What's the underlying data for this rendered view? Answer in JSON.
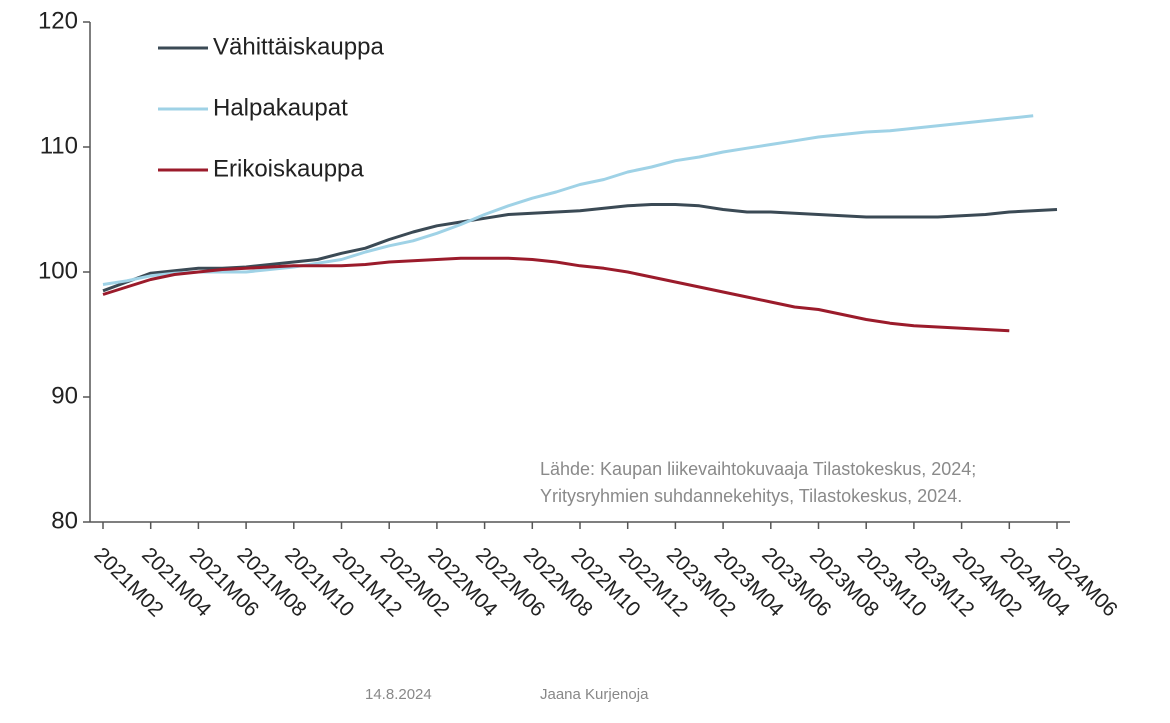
{
  "chart_data": {
    "type": "line",
    "categories": [
      "2021M02",
      null,
      "2021M04",
      null,
      "2021M06",
      null,
      "2021M08",
      null,
      "2021M10",
      null,
      "2021M12",
      null,
      "2022M02",
      null,
      "2022M04",
      null,
      "2022M06",
      null,
      "2022M08",
      null,
      "2022M10",
      null,
      "2022M12",
      null,
      "2023M02",
      null,
      "2023M04",
      null,
      "2023M06",
      null,
      "2023M08",
      null,
      "2023M10",
      null,
      "2023M12",
      null,
      "2024M02",
      null,
      "2024M04",
      null,
      "2024M06"
    ],
    "series": [
      {
        "name": "Vähittäiskauppa",
        "color": "#3b4a55",
        "values": [
          98.5,
          99.2,
          99.9,
          100.1,
          100.3,
          100.3,
          100.4,
          100.6,
          100.8,
          101.0,
          101.5,
          101.9,
          102.6,
          103.2,
          103.7,
          104.0,
          104.3,
          104.6,
          104.7,
          104.8,
          104.9,
          105.1,
          105.3,
          105.4,
          105.4,
          105.3,
          105.0,
          104.8,
          104.8,
          104.7,
          104.6,
          104.5,
          104.4,
          104.4,
          104.4,
          104.4,
          104.5,
          104.6,
          104.8,
          104.9,
          105.0
        ]
      },
      {
        "name": "Halpakaupat",
        "color": "#9fd2e6",
        "values": [
          99.0,
          99.3,
          99.7,
          99.9,
          100.0,
          100.0,
          100.0,
          100.2,
          100.4,
          100.7,
          101.0,
          101.6,
          102.1,
          102.5,
          103.1,
          103.8,
          104.6,
          105.3,
          105.9,
          106.4,
          107.0,
          107.4,
          108.0,
          108.4,
          108.9,
          109.2,
          109.6,
          109.9,
          110.2,
          110.5,
          110.8,
          111.0,
          111.2,
          111.3,
          111.5,
          111.7,
          111.9,
          112.1,
          112.3,
          112.5,
          null
        ]
      },
      {
        "name": "Erikoiskauppa",
        "color": "#9b1b2b",
        "values": [
          98.2,
          98.8,
          99.4,
          99.8,
          100.0,
          100.2,
          100.3,
          100.4,
          100.5,
          100.5,
          100.5,
          100.6,
          100.8,
          100.9,
          101.0,
          101.1,
          101.1,
          101.1,
          101.0,
          100.8,
          100.5,
          100.3,
          100.0,
          99.6,
          99.2,
          98.8,
          98.4,
          98.0,
          97.6,
          97.2,
          97.0,
          96.6,
          96.2,
          95.9,
          95.7,
          95.6,
          95.5,
          95.4,
          95.3,
          null,
          null
        ]
      }
    ],
    "ylim": [
      80,
      120
    ],
    "yticks": [
      80,
      90,
      100,
      110,
      120
    ],
    "grid": false,
    "legend": "top-left",
    "annotation": [
      "Lähde: Kaupan liikevaihtokuvaaja Tilastokeskus, 2024;",
      "Yritysryhmien suhdannekehitys, Tilastokeskus, 2024."
    ]
  },
  "footer": {
    "date": "14.8.2024",
    "author": "Jaana Kurjenoja"
  }
}
